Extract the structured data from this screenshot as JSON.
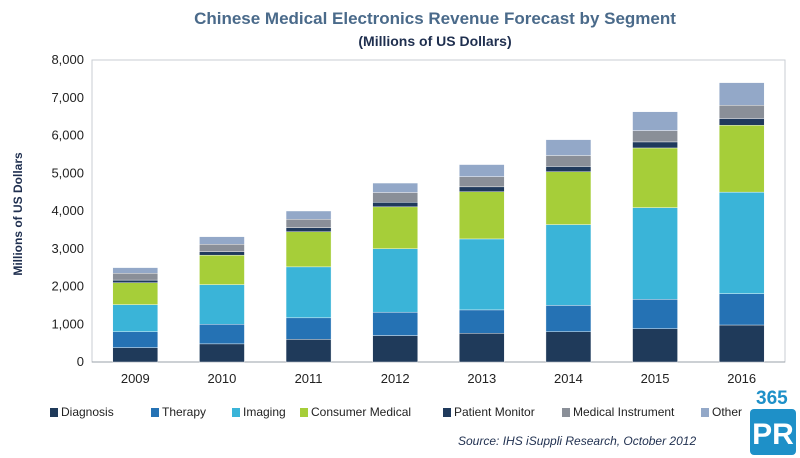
{
  "chart_data": {
    "type": "bar",
    "stacked": true,
    "title": "Chinese Medical Electronics Revenue Forecast by Segment",
    "subtitle": "(Millions of US Dollars)",
    "xlabel": "",
    "ylabel": "Millions of US Dollars",
    "ylim": [
      0,
      8000
    ],
    "yticks": [
      0,
      1000,
      2000,
      3000,
      4000,
      5000,
      6000,
      7000,
      8000
    ],
    "ytick_labels": [
      "0",
      "1,000",
      "2,000",
      "3,000",
      "4,000",
      "5,000",
      "6,000",
      "7,000",
      "8,000"
    ],
    "categories": [
      "2009",
      "2010",
      "2011",
      "2012",
      "2013",
      "2014",
      "2015",
      "2016"
    ],
    "series": [
      {
        "name": "Diagnosis",
        "color": "#1f3a5a",
        "values": [
          380,
          480,
          600,
          700,
          760,
          800,
          880,
          980
        ]
      },
      {
        "name": "Therapy",
        "color": "#2572b4",
        "values": [
          420,
          520,
          570,
          620,
          620,
          700,
          780,
          830
        ]
      },
      {
        "name": "Imaging",
        "color": "#3ab4d8",
        "values": [
          720,
          1050,
          1350,
          1680,
          1880,
          2140,
          2430,
          2690
        ]
      },
      {
        "name": "Consumer Medical",
        "color": "#a6ce39",
        "values": [
          580,
          780,
          930,
          1110,
          1250,
          1400,
          1580,
          1770
        ]
      },
      {
        "name": "Patient Monitor",
        "color": "#203a5c",
        "values": [
          70,
          90,
          110,
          120,
          130,
          140,
          160,
          180
        ]
      },
      {
        "name": "Medical Instrument",
        "color": "#8a8f98",
        "values": [
          180,
          200,
          220,
          260,
          270,
          290,
          300,
          350
        ]
      },
      {
        "name": "Other",
        "color": "#93a8c8",
        "values": [
          150,
          200,
          220,
          250,
          320,
          420,
          500,
          600
        ]
      }
    ],
    "legend_labels": [
      "Diagnosis",
      "Therapy",
      "Imaging",
      "Consumer Medical",
      "Patient Monitor",
      "Medical Instrument",
      "Other"
    ],
    "legend_position": "bottom",
    "grid": false
  },
  "source": "Source: IHS iSuppli Research, October 2012",
  "watermark": {
    "top": "365",
    "bottom": "PR",
    "color": "#1e90c8",
    "bg": "#1e90c8"
  }
}
